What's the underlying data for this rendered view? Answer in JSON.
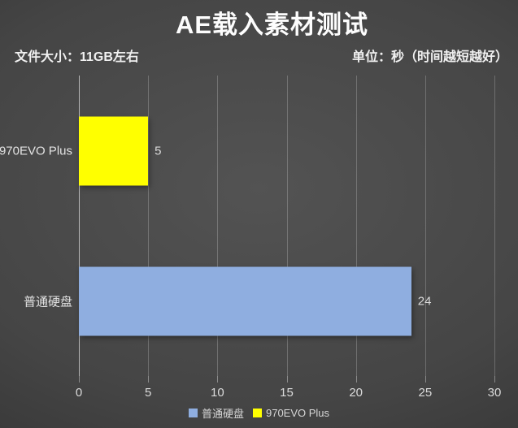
{
  "chart_data": {
    "type": "bar",
    "orientation": "horizontal",
    "title": "AE载入素材测试",
    "subtitle_left": "文件大小：11GB左右",
    "subtitle_right": "单位：秒（时间越短越好）",
    "categories": [
      "970EVO Plus",
      "普通硬盘"
    ],
    "bars": [
      {
        "category": "970EVO Plus",
        "series": "970EVO Plus",
        "value": 5,
        "data_label": "5",
        "color": "#FFFF00"
      },
      {
        "category": "普通硬盘",
        "series": "普通硬盘",
        "value": 24,
        "data_label": "24",
        "color": "#8FAEE0"
      }
    ],
    "xlim": [
      0,
      30
    ],
    "xticks": [
      0,
      5,
      10,
      15,
      20,
      25,
      30
    ],
    "grid": true,
    "legend_position": "bottom",
    "legend": [
      {
        "label": "普通硬盘",
        "color": "#8FAEE0"
      },
      {
        "label": "970EVO Plus",
        "color": "#FFFF00"
      }
    ]
  },
  "colors": {
    "background_center": "#535353",
    "background_edge": "#282828",
    "bar_yellow": "#FFFF00",
    "bar_blue": "#8FAEE0",
    "title_text": "#FDFDFD",
    "body_text": "#DADADA"
  }
}
